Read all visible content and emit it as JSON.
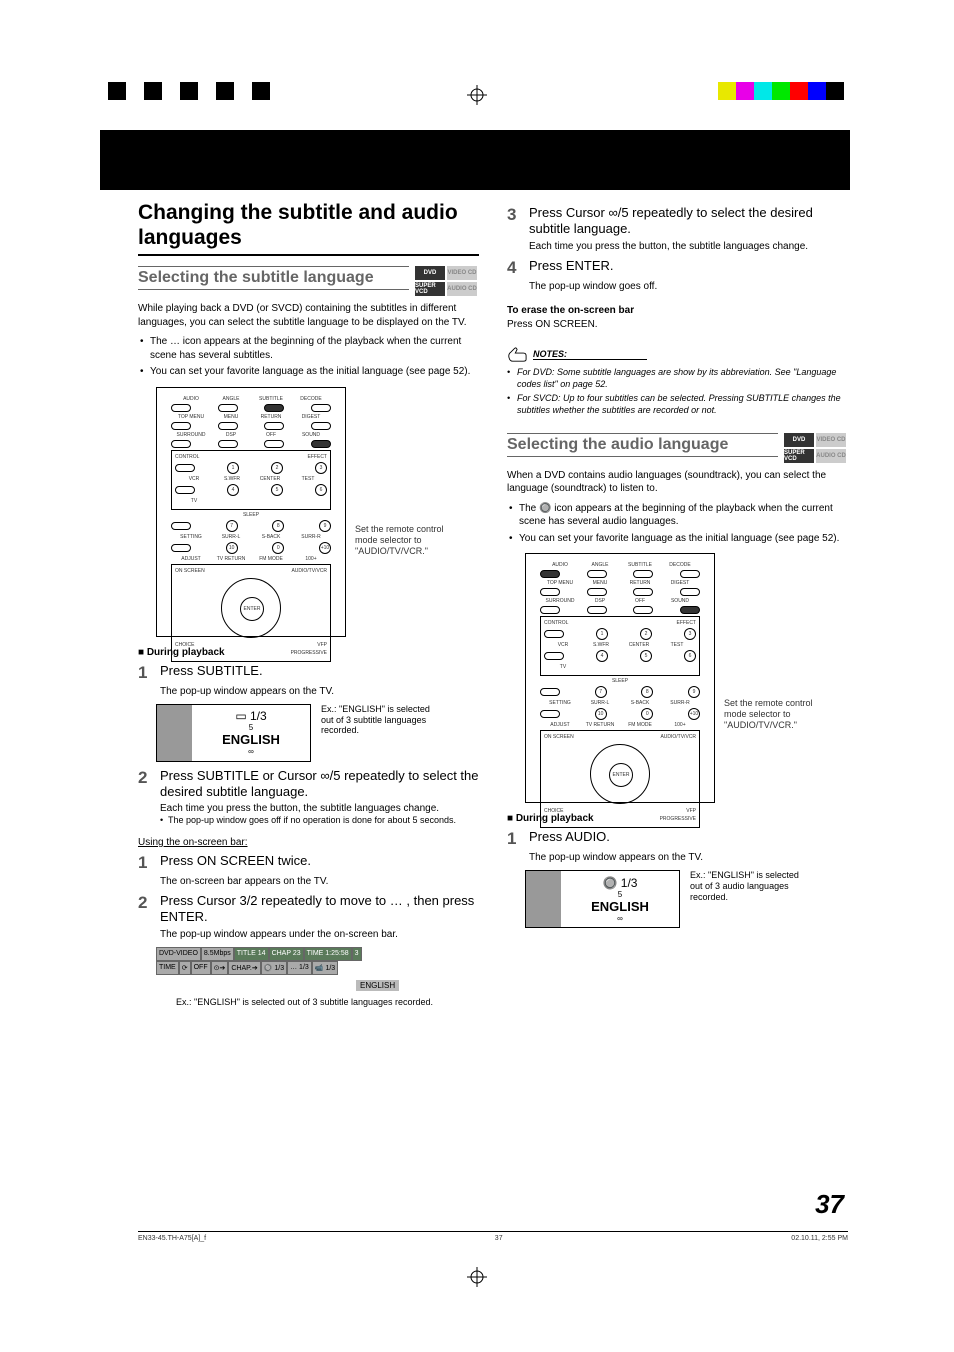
{
  "reg_colors_left": [
    "#000",
    "#fff",
    "#000",
    "#fff",
    "#000",
    "#fff",
    "#000",
    "#fff",
    "#000"
  ],
  "reg_colors_right": [
    "#e8e800",
    "#e800e8",
    "#00e8e8",
    "#00e800",
    "#ff0000",
    "#0000ff",
    "#000000"
  ],
  "page_number": "37",
  "footer_left": "EN33-45.TH-A75[A]_f",
  "footer_center": "37",
  "footer_right": "02.10.11, 2:55 PM",
  "left": {
    "h1": "Changing the subtitle and audio languages",
    "h2": "Selecting the subtitle language",
    "badges": [
      "DVD",
      "VIDEO CD",
      "SUPER VCD",
      "AUDIO CD"
    ],
    "intro": "While playing back a DVD (or SVCD) containing the subtitles in different languages, you can select the subtitle language to be displayed on the TV.",
    "bullets": [
      "The … icon appears at the beginning of the playback when the current scene has several subtitles.",
      "You can set your favorite language as the initial language (see page 52)."
    ],
    "remote_note": "Set the remote control mode selector to \"AUDIO/TV/VCR.\"",
    "during": "■ During playback",
    "step1": "Press SUBTITLE.",
    "step1_sub": "The pop-up window appears on the TV.",
    "popup_count": "1/3",
    "popup_lang": "ENGLISH",
    "popup_caption": "Ex.: \"ENGLISH\" is selected out of 3 subtitle languages recorded.",
    "step2": "Press SUBTITLE or Cursor ∞/5 repeatedly to select the desired subtitle language.",
    "step2_sub1": "Each time you press the button, the subtitle languages change.",
    "step2_sub2": "The pop-up window goes off if no operation is done for about 5 seconds.",
    "using_head": "Using the on-screen bar:",
    "step1b": "Press ON SCREEN twice.",
    "step1b_sub": "The on-screen bar appears on the TV.",
    "step2b": "Press Cursor 3/2 repeatedly to move  to … , then press ENTER.",
    "step2b_sub": "The pop-up window appears under the on-screen bar.",
    "osd_row1": [
      "DVD-VIDEO",
      "8.5Mbps",
      "TITLE 14",
      "CHAP 23",
      "TIME 1:25:58",
      "3"
    ],
    "osd_row2": [
      "TIME",
      "⟳",
      "OFF",
      "⊙➔",
      "CHAP.➔",
      "🔘 1/3",
      "… 1/3",
      "📹 1/3"
    ],
    "osd_tag": "ENGLISH",
    "osd_caption": "Ex.: \"ENGLISH\" is selected out of 3 subtitle languages recorded."
  },
  "right": {
    "step3": "Press Cursor ∞/5 repeatedly to select the desired subtitle language.",
    "step3_sub": "Each time you press the button, the subtitle languages change.",
    "step4": "Press ENTER.",
    "step4_sub": "The pop-up window goes off.",
    "erase_head": "To erase the on-screen bar",
    "erase_body": "Press ON SCREEN.",
    "notes_label": "NOTES:",
    "notes": [
      "For DVD: Some subtitle languages are show by its abbreviation. See \"Language codes list\" on page 52.",
      "For SVCD: Up to four subtitles can be selected. Pressing SUBTITLE changes the subtitles whether the subtitles are recorded or not."
    ],
    "h2": "Selecting the audio language",
    "badges": [
      "DVD",
      "VIDEO CD",
      "SUPER VCD",
      "AUDIO CD"
    ],
    "intro": "When a DVD contains audio languages (soundtrack), you can select the language (soundtrack) to listen to.",
    "bullets": [
      "The 🔘 icon appears at the beginning of the playback when the current scene has several audio languages.",
      "You can set your favorite language as the initial language (see page 52)."
    ],
    "remote_note": "Set the remote control mode selector to \"AUDIO/TV/VCR.\"",
    "during": "■ During playback",
    "step1": "Press AUDIO.",
    "step1_sub": "The pop-up window appears on the TV.",
    "popup_count": "🔘 1/3",
    "popup_lang": "ENGLISH",
    "popup_caption": "Ex.: \"ENGLISH\" is selected out of 3 audio languages recorded."
  },
  "remote": {
    "row1": [
      "AUDIO",
      "ANGLE",
      "SUBTITLE",
      "DECODE"
    ],
    "row2": [
      "TOP MENU",
      "MENU",
      "RETURN",
      "DIGEST"
    ],
    "row3": [
      "SURROUND",
      "DSP",
      "OFF",
      "SOUND"
    ],
    "control": "CONTROL",
    "effect": "EFFECT",
    "vcr": "VCR",
    "tv": "TV",
    "nums": [
      "1",
      "2",
      "3",
      "4",
      "5",
      "6",
      "7",
      "8",
      "9",
      "10",
      "0",
      "+10"
    ],
    "numlbl": [
      "S.WFR",
      "CENTER",
      "TEST",
      "",
      "",
      "",
      "SURR-L",
      "S-BACK",
      "SURR-R",
      "",
      "",
      "100+"
    ],
    "sleep": "SLEEP",
    "setting": "SETTING",
    "adjust": "ADJUST",
    "tvreturn": "TV RETURN",
    "fmmode": "FM MODE",
    "onscreen": "ON SCREEN",
    "enter": "ENTER",
    "choice": "CHOICE",
    "avtv": "AUDIO/TV/VCR",
    "catv": "CATV/DBS",
    "vfp": "VFP",
    "prog": "PROGRESSIVE"
  }
}
